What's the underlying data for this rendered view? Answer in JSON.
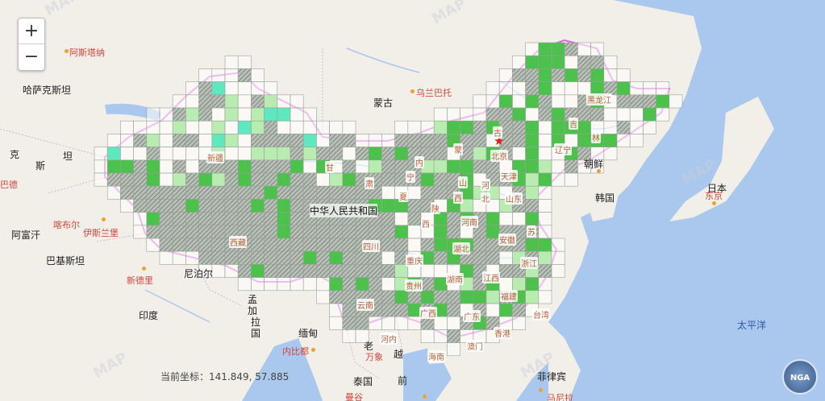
{
  "zoom": {
    "in_label": "+",
    "out_label": "−"
  },
  "coordinates": {
    "prefix": "当前坐标：",
    "value": "141.849, 57.885"
  },
  "country_label": "中华人民共和国",
  "labels": {
    "astana": "阿斯塔纳",
    "kazakhstan": "哈萨克斯坦",
    "mongolia": "蒙古",
    "ulaanbaatar": "乌兰巴托",
    "kyr1": "克",
    "kyr2": "斯",
    "kyr3": "坦",
    "dushanbe": "巴德",
    "kabul": "喀布尔",
    "afghanistan": "阿富汗",
    "islamabad": "伊斯兰堡",
    "pakistan": "巴基斯坦",
    "newdelhi": "新德里",
    "nepal": "尼泊尔",
    "india": "印度",
    "bangladesh_1": "孟",
    "bangladesh_2": "加",
    "bangladesh_3": "拉",
    "bangladesh_4": "国",
    "myanmar": "缅甸",
    "naypyidaw": "内比都",
    "laos": "老",
    "vientiane": "万象",
    "hanoi": "河内",
    "vietnam_1": "越",
    "vietnam_2": "前",
    "thailand": "泰国",
    "bangkok": "曼谷",
    "pyongyang": "朝鲜",
    "korea": "韩国",
    "japan": "日本",
    "tokyo": "东京",
    "philippines": "菲律宾",
    "manila": "马尼拉",
    "pacific": "太平洋"
  },
  "provinces": {
    "xinjiang": "新疆",
    "xizang": "西藏",
    "gansu": "甘",
    "su": "肃",
    "qinghai": "青",
    "ningxia": "宁",
    "neimeng": "内",
    "meng": "蒙",
    "gu": "古",
    "shanxi": "山",
    "shaanxi": "陕",
    "xia": "夏",
    "xi": "西",
    "beijing": "北京",
    "tianjin": "天津",
    "hebei": "河",
    "bei": "北",
    "shandong": "山东",
    "henan": "河南",
    "jiangsu": "苏",
    "anhui": "安徽",
    "hubei": "湖北",
    "sichuan": "四川",
    "chongqing": "重庆",
    "guizhou": "贵州",
    "hunan": "湖南",
    "jiangxi": "江西",
    "zhejiang": "浙江",
    "fujian": "福建",
    "yunnan": "云南",
    "guangxi": "广西",
    "guangdong": "广东",
    "hainan": "海南",
    "hongkong": "香港",
    "macau": "澳门",
    "taiwan": "台湾",
    "liaoning": "辽宁",
    "jilin": "吉",
    "lin": "林",
    "heilongjiang": "黑龙江",
    "shaanxi2": "西"
  },
  "logo_text": "NGA",
  "colors": {
    "land": "#f2efe9",
    "water": "#aac8ee",
    "border": "#d86ad8",
    "green_dark": "#4cc24c",
    "green_light": "#b8ecb0",
    "teal": "#5ee8c0",
    "hatch": "#8a9a8a"
  }
}
